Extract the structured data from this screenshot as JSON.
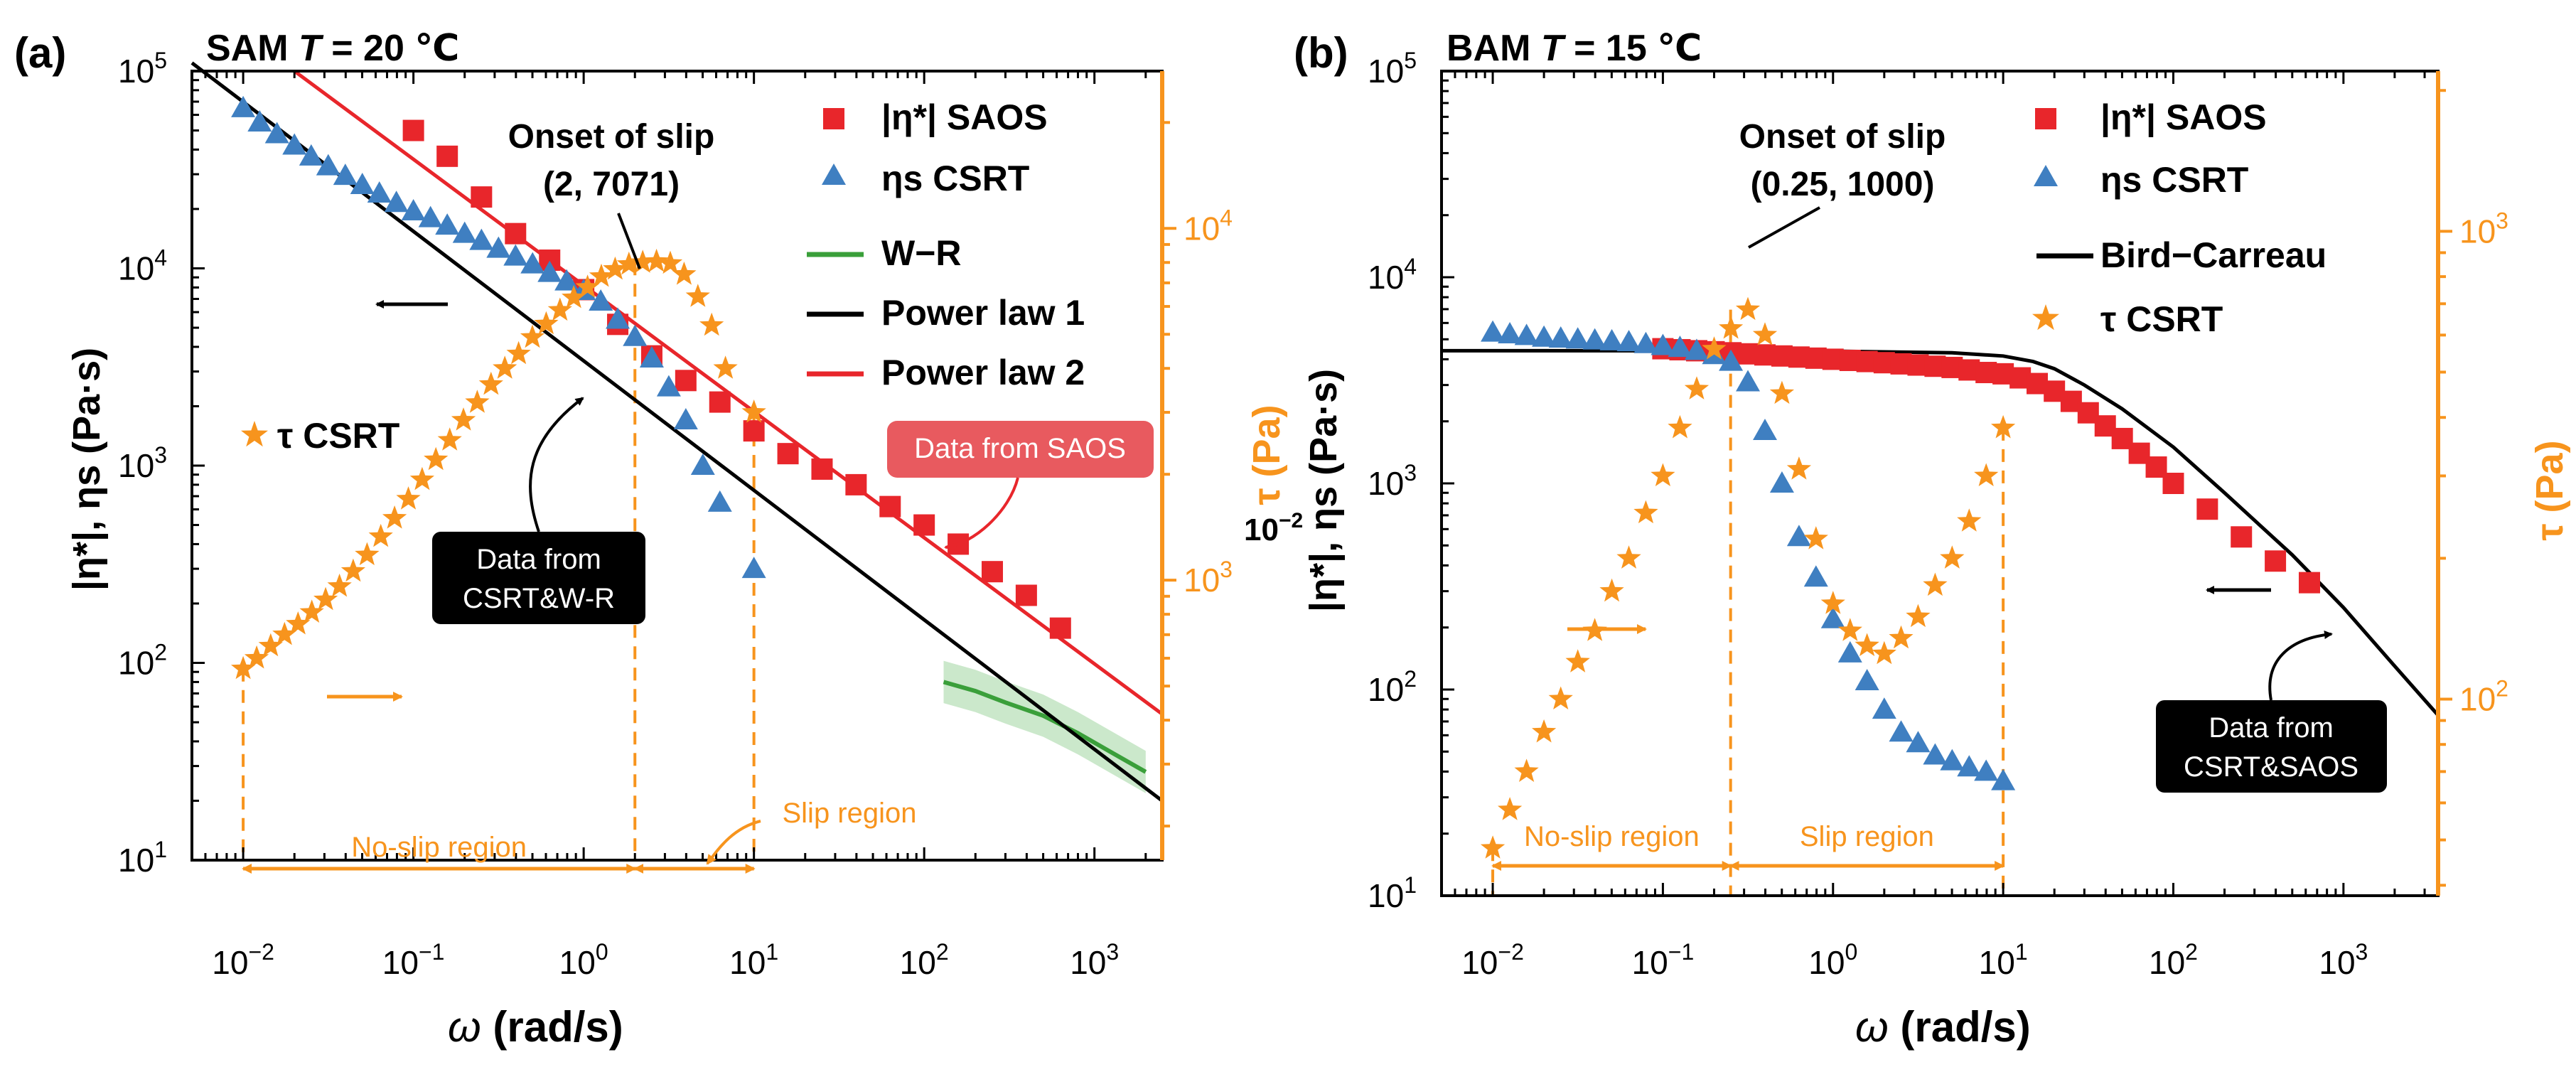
{
  "colors": {
    "saos": "#e8262b",
    "csrt_eta": "#3f7fc1",
    "tau": "#f7941d",
    "wr": "#3a9f3a",
    "powerlaw1": "#000000",
    "powerlaw2": "#e8262b",
    "birdcarreau": "#000000"
  },
  "chart_data": [
    {
      "panel": "(a)",
      "type": "scatter",
      "title_prefix": "SAM",
      "title_var": "T",
      "title_rest": "= 20 ℃",
      "xlabel_sym": "ω",
      "xlabel_unit": "(rad/s)",
      "ylabel": "|η*|,  ηs (Pa·s)",
      "y2label": "τ (Pa)",
      "y2_overlap_text": "10",
      "xscale": "log",
      "xlim": [
        0.005,
        2500
      ],
      "yscale": "log",
      "ylim": [
        10,
        100000
      ],
      "y2scale": "log",
      "y2lim": [
        160,
        28000
      ],
      "xticks": [
        {
          "b": "10",
          "e": "−2",
          "v": 0.01
        },
        {
          "b": "10",
          "e": "−1",
          "v": 0.1
        },
        {
          "b": "10",
          "e": "0",
          "v": 1
        },
        {
          "b": "10",
          "e": "1",
          "v": 10
        },
        {
          "b": "10",
          "e": "2",
          "v": 100
        },
        {
          "b": "10",
          "e": "3",
          "v": 1000
        }
      ],
      "yticks": [
        {
          "b": "10",
          "e": "1",
          "v": 10
        },
        {
          "b": "10",
          "e": "2",
          "v": 100
        },
        {
          "b": "10",
          "e": "3",
          "v": 1000
        },
        {
          "b": "10",
          "e": "4",
          "v": 10000
        },
        {
          "b": "10",
          "e": "5",
          "v": 100000
        }
      ],
      "y2ticks": [
        {
          "b": "10",
          "e": "3",
          "v": 1000
        },
        {
          "b": "10",
          "e": "4",
          "v": 10000
        }
      ],
      "legend": [
        "|η*| SAOS",
        "ηs CSRT",
        "W−R",
        "Power law 1",
        "Power law 2"
      ],
      "tau_legend": "τ  CSRT",
      "series": [
        {
          "name": "|η*| SAOS",
          "kind": "square",
          "axis": "left",
          "x": [
            0.1,
            0.158,
            0.251,
            0.398,
            0.631,
            1,
            1.585,
            2.512,
            3.981,
            6.31,
            10,
            15.85,
            25.12,
            39.81,
            63.1,
            100,
            158.5,
            251.2,
            398.1,
            631
          ],
          "y": [
            50000,
            37000,
            23000,
            15000,
            11000,
            7800,
            5200,
            3600,
            2700,
            2100,
            1500,
            1150,
            960,
            800,
            620,
            500,
            400,
            290,
            220,
            150
          ]
        },
        {
          "name": "ηs CSRT",
          "kind": "triangle",
          "axis": "left",
          "x": [
            0.01,
            0.0125,
            0.0158,
            0.02,
            0.0251,
            0.0316,
            0.0398,
            0.0501,
            0.0631,
            0.0794,
            0.1,
            0.126,
            0.158,
            0.2,
            0.251,
            0.316,
            0.398,
            0.501,
            0.631,
            0.794,
            1,
            1.26,
            1.585,
            2,
            2.512,
            3.162,
            3.981,
            5.012,
            6.31,
            10
          ],
          "y": [
            65000,
            55000,
            48000,
            42000,
            37000,
            33000,
            29500,
            26500,
            24000,
            21500,
            19500,
            18000,
            16500,
            15000,
            13800,
            12600,
            11500,
            10500,
            9500,
            8600,
            7700,
            6800,
            5500,
            4500,
            3500,
            2500,
            1700,
            1000,
            650,
            300
          ]
        },
        {
          "name": "τ CSRT",
          "kind": "star",
          "axis": "right",
          "x": [
            0.01,
            0.012,
            0.0145,
            0.0175,
            0.021,
            0.0253,
            0.0305,
            0.0368,
            0.0443,
            0.0534,
            0.0643,
            0.0775,
            0.0934,
            0.1125,
            0.1355,
            0.1634,
            0.1968,
            0.2371,
            0.2857,
            0.3443,
            0.4149,
            0.4999,
            0.6024,
            0.7259,
            0.8747,
            1.054,
            1.27,
            1.53,
            1.844,
            2.222,
            2.678,
            3.227,
            3.889,
            4.686,
            5.647,
            6.804,
            10
          ],
          "y": [
            560,
            600,
            650,
            700,
            750,
            810,
            880,
            960,
            1060,
            1180,
            1330,
            1500,
            1700,
            1930,
            2200,
            2500,
            2850,
            3200,
            3600,
            4000,
            4400,
            4900,
            5350,
            5850,
            6350,
            6800,
            7300,
            7650,
            7900,
            8000,
            8050,
            7950,
            7400,
            6400,
            5300,
            4000,
            3000
          ]
        },
        {
          "name": "W−R",
          "kind": "line",
          "axis": "left",
          "x": [
            130,
            200,
            300,
            500,
            800,
            1200,
            2000
          ],
          "y": [
            80,
            72,
            63,
            54,
            44,
            36,
            28
          ]
        },
        {
          "name": "Power law 1",
          "kind": "line",
          "axis": "left",
          "x": [
            0.005,
            2500
          ],
          "y": [
            110000,
            20
          ]
        },
        {
          "name": "Power law 2",
          "kind": "line",
          "axis": "left",
          "x": [
            0.02,
            2500
          ],
          "y": [
            100000,
            55
          ]
        }
      ],
      "annotations": {
        "onset_title": "Onset of slip",
        "onset_point": "(2, 7071)",
        "box_left": [
          "Data from",
          "CSRT&W-R"
        ],
        "box_red": "Data from SAOS",
        "no_slip": "No-slip region",
        "slip": "Slip region",
        "onset_x": 2,
        "tau_min_x": 0.01,
        "slip_end_x": 10
      }
    },
    {
      "panel": "(b)",
      "type": "scatter",
      "title_prefix": "BAM",
      "title_var": "T",
      "title_rest": "= 15 ℃",
      "xlabel_sym": "ω",
      "xlabel_unit": "(rad/s)",
      "ylabel": "|η*|,  ηs (Pa·s)",
      "y2label": "τ (Pa)",
      "xscale": "log",
      "xlim": [
        0.005,
        3600
      ],
      "yscale": "log",
      "ylim": [
        10,
        100000
      ],
      "y2scale": "log",
      "y2lim": [
        38,
        2200
      ],
      "xticks": [
        {
          "b": "10",
          "e": "−2",
          "v": 0.01
        },
        {
          "b": "10",
          "e": "−1",
          "v": 0.1
        },
        {
          "b": "10",
          "e": "0",
          "v": 1
        },
        {
          "b": "10",
          "e": "1",
          "v": 10
        },
        {
          "b": "10",
          "e": "2",
          "v": 100
        },
        {
          "b": "10",
          "e": "3",
          "v": 1000
        }
      ],
      "yticks": [
        {
          "b": "10",
          "e": "1",
          "v": 10
        },
        {
          "b": "10",
          "e": "2",
          "v": 100
        },
        {
          "b": "10",
          "e": "3",
          "v": 1000
        },
        {
          "b": "10",
          "e": "4",
          "v": 10000
        },
        {
          "b": "10",
          "e": "5",
          "v": 100000
        }
      ],
      "y2ticks": [
        {
          "b": "10",
          "e": "2",
          "v": 100
        },
        {
          "b": "10",
          "e": "3",
          "v": 1000
        }
      ],
      "legend": [
        "|η*| SAOS",
        "ηs CSRT",
        "Bird−Carreau",
        "τ  CSRT"
      ],
      "series": [
        {
          "name": "|η*| SAOS",
          "kind": "square",
          "axis": "left",
          "x": [
            0.1,
            0.126,
            0.158,
            0.2,
            0.251,
            0.316,
            0.398,
            0.501,
            0.631,
            0.794,
            1,
            1.26,
            1.585,
            2,
            2.512,
            3.162,
            3.981,
            5.012,
            6.31,
            7.943,
            10,
            12.6,
            15.85,
            20,
            25.12,
            31.62,
            39.81,
            50.12,
            63.1,
            79.43,
            100,
            158.5,
            251.2,
            398.1,
            631
          ],
          "y": [
            4500,
            4450,
            4400,
            4350,
            4300,
            4250,
            4200,
            4150,
            4100,
            4050,
            4000,
            3950,
            3900,
            3850,
            3800,
            3750,
            3700,
            3650,
            3550,
            3450,
            3400,
            3250,
            3050,
            2800,
            2500,
            2200,
            1900,
            1650,
            1400,
            1200,
            1000,
            750,
            550,
            420,
            330
          ]
        },
        {
          "name": "ηs CSRT",
          "kind": "triangle",
          "axis": "left",
          "x": [
            0.01,
            0.0126,
            0.0158,
            0.02,
            0.0251,
            0.0316,
            0.0398,
            0.0501,
            0.0631,
            0.0794,
            0.1,
            0.126,
            0.158,
            0.2,
            0.251,
            0.316,
            0.398,
            0.501,
            0.631,
            0.794,
            1,
            1.26,
            1.585,
            2,
            2.512,
            3.162,
            3.981,
            5.012,
            6.31,
            7.943,
            10
          ],
          "y": [
            5400,
            5300,
            5200,
            5100,
            5050,
            5000,
            4950,
            4900,
            4850,
            4750,
            4650,
            4550,
            4400,
            4200,
            3900,
            3100,
            1800,
            1000,
            550,
            350,
            220,
            150,
            110,
            80,
            62,
            55,
            48,
            45,
            42,
            40,
            36
          ]
        },
        {
          "name": "τ CSRT",
          "kind": "star",
          "axis": "right",
          "x": [
            0.01,
            0.0126,
            0.0158,
            0.02,
            0.0251,
            0.0316,
            0.0398,
            0.0501,
            0.0631,
            0.0794,
            0.1,
            0.126,
            0.158,
            0.2,
            0.251,
            0.316,
            0.398,
            0.501,
            0.631,
            0.794,
            1,
            1.26,
            1.585,
            2,
            2.512,
            3.162,
            3.981,
            5.012,
            6.31,
            7.943,
            10
          ],
          "y": [
            48,
            58,
            70,
            85,
            100,
            120,
            140,
            170,
            200,
            250,
            300,
            380,
            460,
            560,
            620,
            680,
            600,
            450,
            310,
            220,
            160,
            140,
            130,
            125,
            135,
            150,
            175,
            200,
            240,
            300,
            380
          ]
        },
        {
          "name": "Bird−Carreau",
          "kind": "line",
          "axis": "left",
          "x": [
            0.005,
            0.1,
            1,
            5,
            10,
            15,
            20,
            30,
            50,
            100,
            200,
            500,
            1000,
            2000,
            3600
          ],
          "y": [
            4400,
            4400,
            4380,
            4300,
            4150,
            3900,
            3600,
            3000,
            2300,
            1500,
            900,
            450,
            250,
            130,
            75
          ]
        }
      ],
      "annotations": {
        "onset_title": "Onset of slip",
        "onset_point": "(0.25, 1000)",
        "box_black": [
          "Data from",
          "CSRT&SAOS"
        ],
        "no_slip": "No-slip region",
        "slip": "Slip region",
        "onset_x": 0.25,
        "tau_min_x": 0.01,
        "slip_end_x": 10
      }
    }
  ]
}
